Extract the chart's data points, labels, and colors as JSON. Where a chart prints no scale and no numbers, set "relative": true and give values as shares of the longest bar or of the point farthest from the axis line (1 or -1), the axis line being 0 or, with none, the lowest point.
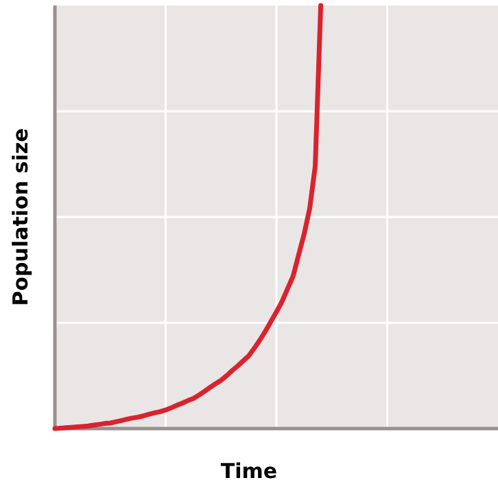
{
  "chart_data": {
    "type": "line",
    "xlabel": "Time",
    "ylabel": "Population size",
    "relative": true,
    "grid": true,
    "marker": "none",
    "line_style": "solid",
    "categories": [
      null,
      null,
      null,
      null,
      null,
      null,
      null,
      null,
      null,
      null,
      null,
      null,
      null,
      null,
      null,
      null,
      null,
      null,
      null,
      null,
      null,
      null,
      null,
      null,
      null,
      null,
      null,
      null,
      null,
      null,
      null,
      null,
      null,
      null,
      null,
      null,
      null,
      null,
      null,
      null,
      null,
      null,
      null,
      null,
      null,
      null,
      null,
      null,
      null,
      null,
      null,
      null,
      null,
      null,
      null,
      null,
      null,
      null,
      null,
      null,
      null,
      null,
      null,
      null,
      null,
      null,
      null,
      null,
      null,
      null,
      null,
      null,
      null,
      null,
      null,
      null,
      null,
      null,
      null,
      null,
      null
    ],
    "series": [
      {
        "color": "#d9232e",
        "values": [
          0,
          0.001,
          0.002,
          0.003,
          0.004,
          0.005,
          0.006,
          0.008,
          0.01,
          0.012,
          0.013,
          0.016,
          0.019,
          0.022,
          0.025,
          0.027,
          0.03,
          0.034,
          0.037,
          0.04,
          0.044,
          0.049,
          0.055,
          0.06,
          0.066,
          0.071,
          0.079,
          0.088,
          0.097,
          0.106,
          0.114,
          0.125,
          0.137,
          0.148,
          0.16,
          0.172,
          0.19,
          0.209,
          0.23,
          0.253,
          0.276,
          0.3,
          0.33,
          0.36,
          0.41,
          0.46,
          0.52,
          0.62,
          1.0,
          null,
          null,
          null,
          null,
          null,
          null,
          null,
          null,
          null,
          null,
          null,
          null,
          null,
          null,
          null,
          null,
          null,
          null,
          null,
          null,
          null,
          null,
          null,
          null,
          null,
          null,
          null,
          null,
          null,
          null,
          null,
          null
        ]
      }
    ]
  }
}
